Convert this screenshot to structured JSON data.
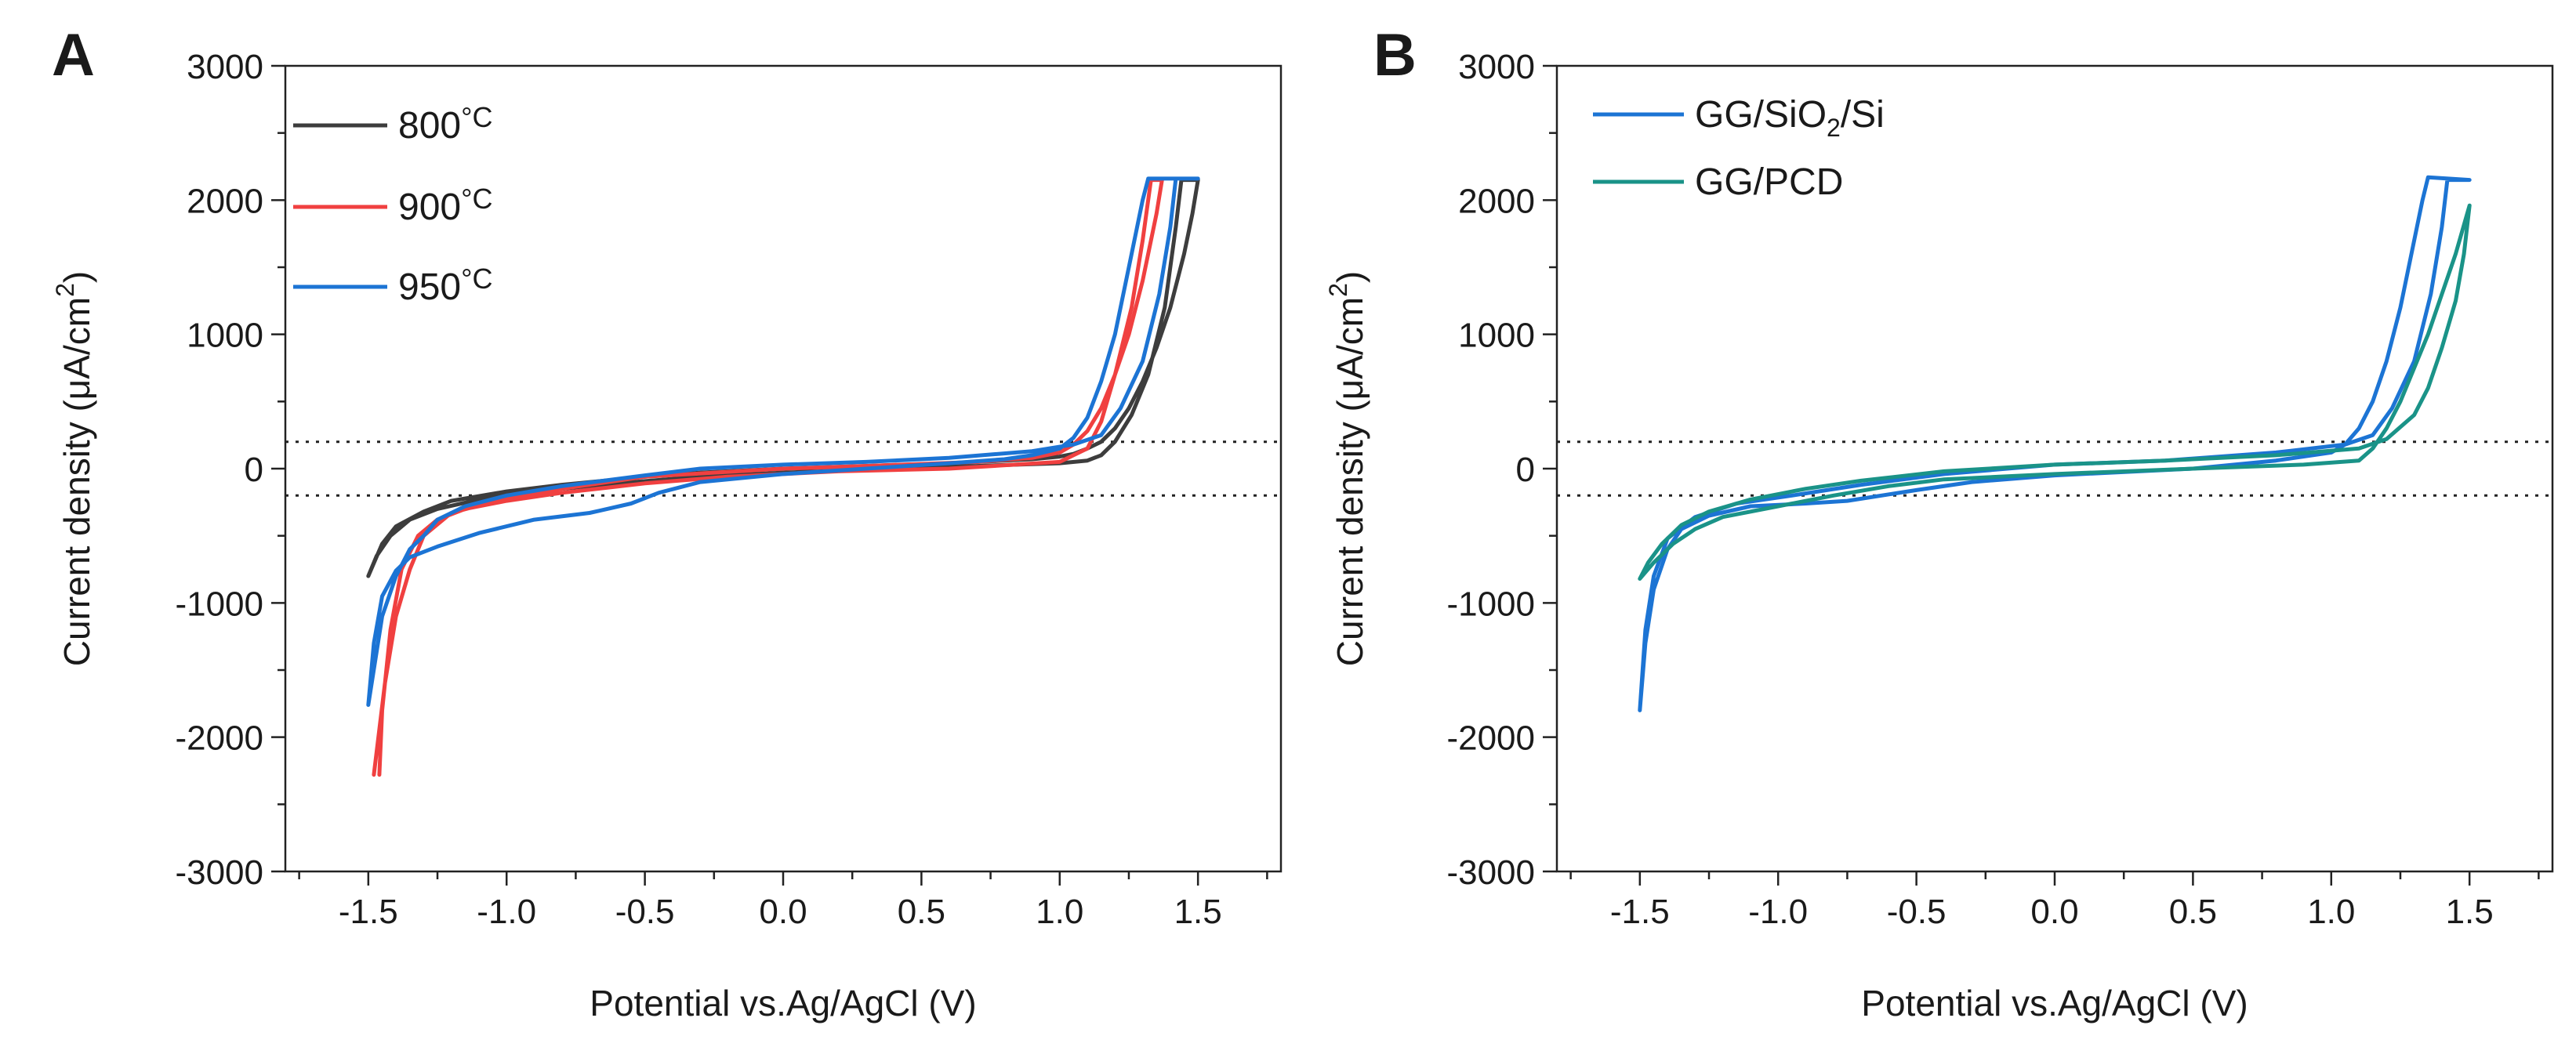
{
  "chart_data": [
    {
      "panel": "A",
      "type": "line",
      "title": "",
      "xlabel": "Potential vs.Ag/AgCl (V)",
      "ylabel": "Current density (µA/cm²)",
      "ylabel_main": "Current density (μA/cm",
      "ylabel_sup": "2",
      "ylabel_end": ")",
      "xlim": [
        -1.8,
        1.8
      ],
      "ylim": [
        -3000,
        3000
      ],
      "xticks": [
        -1.5,
        -1.0,
        -0.5,
        0.0,
        0.5,
        1.0,
        1.5
      ],
      "xtick_labels": [
        "-1.5",
        "-1.0",
        "-0.5",
        "0.0",
        "0.5",
        "1.0",
        "1.5"
      ],
      "yticks": [
        -3000,
        -2000,
        -1000,
        0,
        1000,
        2000,
        3000
      ],
      "ytick_labels": [
        "-3000",
        "-2000",
        "-1000",
        "0",
        "1000",
        "2000",
        "3000"
      ],
      "reference_lines": [
        200,
        -200
      ],
      "legend_position": "top-left",
      "series": [
        {
          "name": "800°C",
          "label_main": "800",
          "label_suffix": "°C",
          "color": "#3d3d3d",
          "points": [
            [
              -1.5,
              -800
            ],
            [
              -1.45,
              -560
            ],
            [
              -1.4,
              -430
            ],
            [
              -1.3,
              -320
            ],
            [
              -1.2,
              -240
            ],
            [
              -1.0,
              -170
            ],
            [
              -0.8,
              -120
            ],
            [
              -0.5,
              -60
            ],
            [
              -0.3,
              -30
            ],
            [
              0.0,
              0
            ],
            [
              0.3,
              20
            ],
            [
              0.6,
              40
            ],
            [
              0.9,
              70
            ],
            [
              1.0,
              90
            ],
            [
              1.05,
              110
            ],
            [
              1.1,
              150
            ],
            [
              1.15,
              200
            ],
            [
              1.2,
              300
            ],
            [
              1.25,
              450
            ],
            [
              1.3,
              650
            ],
            [
              1.35,
              900
            ],
            [
              1.4,
              1200
            ],
            [
              1.45,
              1600
            ],
            [
              1.48,
              1900
            ],
            [
              1.5,
              2150
            ],
            [
              1.44,
              2150
            ],
            [
              1.42,
              1800
            ],
            [
              1.38,
              1200
            ],
            [
              1.32,
              700
            ],
            [
              1.26,
              400
            ],
            [
              1.2,
              200
            ],
            [
              1.15,
              100
            ],
            [
              1.1,
              60
            ],
            [
              1.0,
              40
            ],
            [
              0.7,
              20
            ],
            [
              0.3,
              -10
            ],
            [
              0.0,
              -30
            ],
            [
              -0.3,
              -60
            ],
            [
              -0.6,
              -110
            ],
            [
              -0.9,
              -170
            ],
            [
              -1.1,
              -230
            ],
            [
              -1.25,
              -300
            ],
            [
              -1.35,
              -380
            ],
            [
              -1.42,
              -500
            ],
            [
              -1.47,
              -650
            ],
            [
              -1.5,
              -800
            ]
          ]
        },
        {
          "name": "900°C",
          "label_main": "900",
          "label_suffix": "°C",
          "color": "#f04040",
          "points": [
            [
              -1.48,
              -2280
            ],
            [
              -1.44,
              -1600
            ],
            [
              -1.4,
              -1100
            ],
            [
              -1.35,
              -750
            ],
            [
              -1.3,
              -500
            ],
            [
              -1.2,
              -330
            ],
            [
              -1.0,
              -220
            ],
            [
              -0.8,
              -150
            ],
            [
              -0.5,
              -60
            ],
            [
              0.0,
              0
            ],
            [
              0.3,
              20
            ],
            [
              0.7,
              50
            ],
            [
              0.9,
              80
            ],
            [
              1.0,
              120
            ],
            [
              1.05,
              180
            ],
            [
              1.1,
              280
            ],
            [
              1.15,
              450
            ],
            [
              1.2,
              700
            ],
            [
              1.25,
              1000
            ],
            [
              1.3,
              1400
            ],
            [
              1.35,
              1900
            ],
            [
              1.37,
              2150
            ],
            [
              1.33,
              2150
            ],
            [
              1.3,
              1700
            ],
            [
              1.26,
              1200
            ],
            [
              1.2,
              700
            ],
            [
              1.15,
              350
            ],
            [
              1.1,
              150
            ],
            [
              1.0,
              50
            ],
            [
              0.6,
              0
            ],
            [
              0.2,
              -20
            ],
            [
              -0.2,
              -60
            ],
            [
              -0.5,
              -110
            ],
            [
              -0.8,
              -180
            ],
            [
              -1.0,
              -240
            ],
            [
              -1.15,
              -300
            ],
            [
              -1.25,
              -380
            ],
            [
              -1.32,
              -500
            ],
            [
              -1.38,
              -750
            ],
            [
              -1.42,
              -1200
            ],
            [
              -1.45,
              -1800
            ],
            [
              -1.46,
              -2280
            ]
          ]
        },
        {
          "name": "950°C",
          "label_main": "950",
          "label_suffix": "°C",
          "color": "#1c74d4",
          "points": [
            [
              -1.5,
              -1760
            ],
            [
              -1.48,
              -1300
            ],
            [
              -1.45,
              -950
            ],
            [
              -1.4,
              -760
            ],
            [
              -1.35,
              -660
            ],
            [
              -1.25,
              -580
            ],
            [
              -1.1,
              -480
            ],
            [
              -0.9,
              -380
            ],
            [
              -0.7,
              -330
            ],
            [
              -0.55,
              -260
            ],
            [
              -0.45,
              -180
            ],
            [
              -0.3,
              -100
            ],
            [
              0.0,
              -40
            ],
            [
              0.3,
              0
            ],
            [
              0.6,
              40
            ],
            [
              0.8,
              70
            ],
            [
              0.9,
              100
            ],
            [
              1.0,
              150
            ],
            [
              1.05,
              230
            ],
            [
              1.1,
              380
            ],
            [
              1.15,
              650
            ],
            [
              1.2,
              1000
            ],
            [
              1.25,
              1500
            ],
            [
              1.3,
              2000
            ],
            [
              1.32,
              2160
            ],
            [
              1.5,
              2160
            ],
            [
              1.42,
              2160
            ],
            [
              1.4,
              1800
            ],
            [
              1.36,
              1300
            ],
            [
              1.3,
              800
            ],
            [
              1.22,
              450
            ],
            [
              1.15,
              250
            ],
            [
              1.05,
              180
            ],
            [
              0.9,
              130
            ],
            [
              0.6,
              80
            ],
            [
              0.3,
              50
            ],
            [
              0.0,
              30
            ],
            [
              -0.3,
              0
            ],
            [
              -0.5,
              -50
            ],
            [
              -0.8,
              -130
            ],
            [
              -1.0,
              -200
            ],
            [
              -1.15,
              -280
            ],
            [
              -1.25,
              -380
            ],
            [
              -1.3,
              -500
            ],
            [
              -1.35,
              -600
            ],
            [
              -1.4,
              -800
            ],
            [
              -1.45,
              -1100
            ],
            [
              -1.5,
              -1760
            ]
          ]
        }
      ]
    },
    {
      "panel": "B",
      "type": "line",
      "title": "",
      "xlabel": "Potential vs.Ag/AgCl (V)",
      "ylabel": "Current density (µA/cm²)",
      "ylabel_main": "Current density (μA/cm",
      "ylabel_sup": "2",
      "ylabel_end": ")",
      "xlim": [
        -1.8,
        1.8
      ],
      "ylim": [
        -3000,
        3000
      ],
      "xticks": [
        -1.5,
        -1.0,
        -0.5,
        0.0,
        0.5,
        1.0,
        1.5
      ],
      "xtick_labels": [
        "-1.5",
        "-1.0",
        "-0.5",
        "0.0",
        "0.5",
        "1.0",
        "1.5"
      ],
      "yticks": [
        -3000,
        -2000,
        -1000,
        0,
        1000,
        2000,
        3000
      ],
      "ytick_labels": [
        "-3000",
        "-2000",
        "-1000",
        "0",
        "1000",
        "2000",
        "3000"
      ],
      "reference_lines": [
        200,
        -200
      ],
      "legend_position": "top-left",
      "series": [
        {
          "name": "GG/SiO2/Si",
          "label_pre": "GG/SiO",
          "label_sub": "2",
          "label_post": "/Si",
          "color": "#1c74d4",
          "points": [
            [
              -1.5,
              -1800
            ],
            [
              -1.48,
              -1300
            ],
            [
              -1.45,
              -900
            ],
            [
              -1.4,
              -600
            ],
            [
              -1.35,
              -450
            ],
            [
              -1.25,
              -350
            ],
            [
              -1.1,
              -280
            ],
            [
              -0.9,
              -260
            ],
            [
              -0.75,
              -240
            ],
            [
              -0.5,
              -160
            ],
            [
              -0.3,
              -100
            ],
            [
              0.0,
              -50
            ],
            [
              0.5,
              0
            ],
            [
              0.8,
              60
            ],
            [
              1.0,
              120
            ],
            [
              1.05,
              180
            ],
            [
              1.1,
              300
            ],
            [
              1.15,
              500
            ],
            [
              1.2,
              800
            ],
            [
              1.25,
              1200
            ],
            [
              1.3,
              1700
            ],
            [
              1.33,
              2000
            ],
            [
              1.35,
              2170
            ],
            [
              1.5,
              2150
            ],
            [
              1.42,
              2150
            ],
            [
              1.4,
              1800
            ],
            [
              1.36,
              1300
            ],
            [
              1.3,
              800
            ],
            [
              1.22,
              450
            ],
            [
              1.15,
              250
            ],
            [
              1.05,
              180
            ],
            [
              0.8,
              120
            ],
            [
              0.4,
              60
            ],
            [
              0.0,
              30
            ],
            [
              -0.4,
              -40
            ],
            [
              -0.7,
              -120
            ],
            [
              -0.95,
              -200
            ],
            [
              -1.15,
              -260
            ],
            [
              -1.3,
              -360
            ],
            [
              -1.4,
              -520
            ],
            [
              -1.45,
              -800
            ],
            [
              -1.48,
              -1200
            ],
            [
              -1.5,
              -1800
            ]
          ]
        },
        {
          "name": "GG/PCD",
          "label_pre": "GG/PCD",
          "label_sub": "",
          "label_post": "",
          "color": "#1a9388",
          "points": [
            [
              -1.5,
              -820
            ],
            [
              -1.45,
              -700
            ],
            [
              -1.38,
              -560
            ],
            [
              -1.3,
              -450
            ],
            [
              -1.2,
              -360
            ],
            [
              -1.0,
              -280
            ],
            [
              -0.8,
              -200
            ],
            [
              -0.6,
              -130
            ],
            [
              -0.4,
              -80
            ],
            [
              0.0,
              -40
            ],
            [
              0.5,
              0
            ],
            [
              0.9,
              30
            ],
            [
              1.1,
              60
            ],
            [
              1.15,
              150
            ],
            [
              1.2,
              300
            ],
            [
              1.25,
              500
            ],
            [
              1.3,
              750
            ],
            [
              1.35,
              1000
            ],
            [
              1.4,
              1300
            ],
            [
              1.45,
              1600
            ],
            [
              1.5,
              1960
            ],
            [
              1.48,
              1600
            ],
            [
              1.45,
              1250
            ],
            [
              1.4,
              900
            ],
            [
              1.35,
              600
            ],
            [
              1.3,
              400
            ],
            [
              1.2,
              220
            ],
            [
              1.1,
              150
            ],
            [
              0.8,
              100
            ],
            [
              0.4,
              60
            ],
            [
              0.0,
              30
            ],
            [
              -0.4,
              -20
            ],
            [
              -0.7,
              -90
            ],
            [
              -0.9,
              -150
            ],
            [
              -1.1,
              -230
            ],
            [
              -1.25,
              -320
            ],
            [
              -1.35,
              -420
            ],
            [
              -1.42,
              -560
            ],
            [
              -1.47,
              -700
            ],
            [
              -1.5,
              -820
            ]
          ]
        }
      ]
    }
  ]
}
